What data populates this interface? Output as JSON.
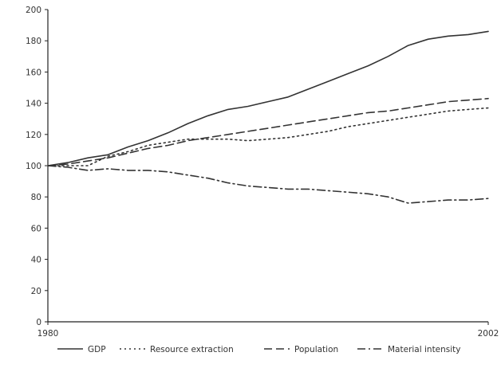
{
  "chart_data": {
    "type": "line",
    "title": "",
    "xlabel": "",
    "ylabel": "",
    "x": [
      1980,
      1981,
      1982,
      1983,
      1984,
      1985,
      1986,
      1987,
      1988,
      1989,
      1990,
      1991,
      1992,
      1993,
      1994,
      1995,
      1996,
      1997,
      1998,
      1999,
      2000,
      2001,
      2002
    ],
    "x_tick_labels": [
      "1980",
      "2002"
    ],
    "ylim": [
      0,
      200
    ],
    "y_ticks": [
      0,
      20,
      40,
      60,
      80,
      100,
      120,
      140,
      160,
      180,
      200
    ],
    "grid": false,
    "legend_position": "bottom",
    "series": [
      {
        "name": "GDP",
        "style": "solid",
        "values": [
          100,
          102,
          105,
          107,
          112,
          116,
          121,
          127,
          132,
          136,
          138,
          141,
          144,
          149,
          154,
          159,
          164,
          170,
          177,
          181,
          183,
          184,
          186
        ]
      },
      {
        "name": "Resource extraction",
        "style": "dotted",
        "values": [
          100,
          100,
          100,
          106,
          109,
          113,
          115,
          117,
          117,
          117,
          116,
          117,
          118,
          120,
          122,
          125,
          127,
          129,
          131,
          133,
          135,
          136,
          137
        ]
      },
      {
        "name": "Population",
        "style": "dashed",
        "values": [
          100,
          101,
          103,
          105,
          108,
          111,
          113,
          116,
          118,
          120,
          122,
          124,
          126,
          128,
          130,
          132,
          134,
          135,
          137,
          139,
          141,
          142,
          143
        ]
      },
      {
        "name": "Material intensity",
        "style": "dashdot",
        "values": [
          100,
          99,
          97,
          98,
          97,
          97,
          96,
          94,
          92,
          89,
          87,
          86,
          85,
          85,
          84,
          83,
          82,
          80,
          76,
          77,
          78,
          78,
          79
        ]
      }
    ]
  }
}
